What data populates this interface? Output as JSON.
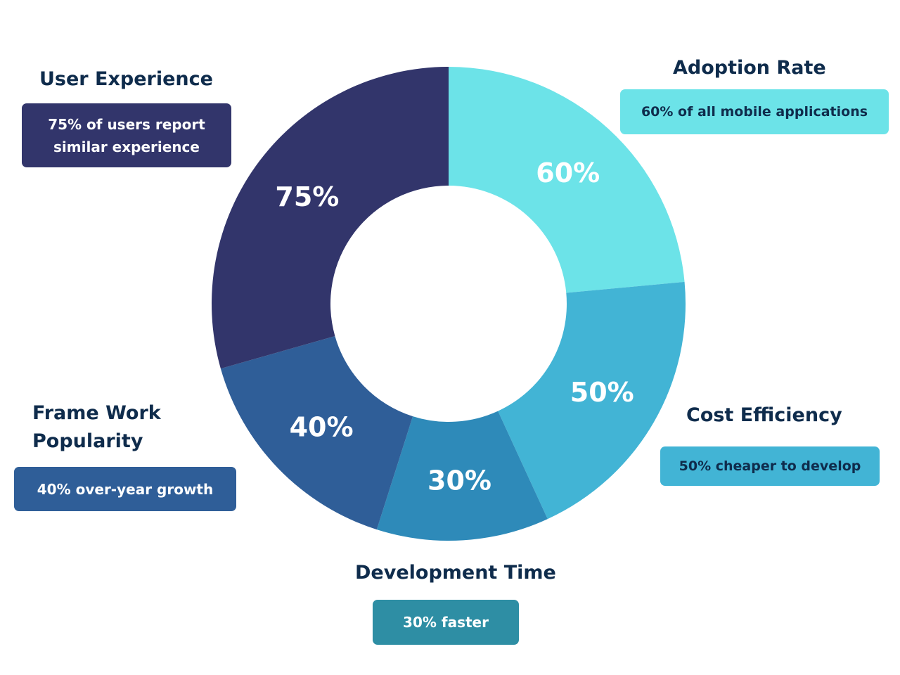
{
  "colors": {
    "user_experience": "#32356b",
    "adoption_rate": "#6ce3e8",
    "cost_efficiency": "#42b4d5",
    "development_time": "#2e8ab9",
    "framework_popularity": "#2f5e98",
    "title_text": "#0f2c4c"
  },
  "chart_data": {
    "type": "pie",
    "variant": "donut",
    "categories": [
      "Adoption Rate",
      "Cost Efficiency",
      "Development Time",
      "Frame Work Popularity",
      "User Experience"
    ],
    "values": [
      60,
      50,
      30,
      40,
      75
    ],
    "value_labels": [
      "60%",
      "50%",
      "30%",
      "40%",
      "75%"
    ],
    "annotations": [
      "60% of all mobile applications",
      "50% cheaper to develop",
      "30% faster",
      "40% over-year growth",
      "75% of users  report similar experience"
    ],
    "legend": "none"
  },
  "callouts": {
    "user_experience": {
      "title": "User Experience",
      "line1": "75% of users  report",
      "line2": "similar experience"
    },
    "adoption_rate": {
      "title": "Adoption Rate",
      "text": "60% of all mobile applications"
    },
    "cost_efficiency": {
      "title": "Cost Efficiency",
      "text": "50% cheaper to develop"
    },
    "development_time": {
      "title": "Development Time",
      "text": "30% faster"
    },
    "framework_popularity": {
      "title_line1": "Frame Work",
      "title_line2": "Popularity",
      "text": "40% over-year growth"
    }
  }
}
